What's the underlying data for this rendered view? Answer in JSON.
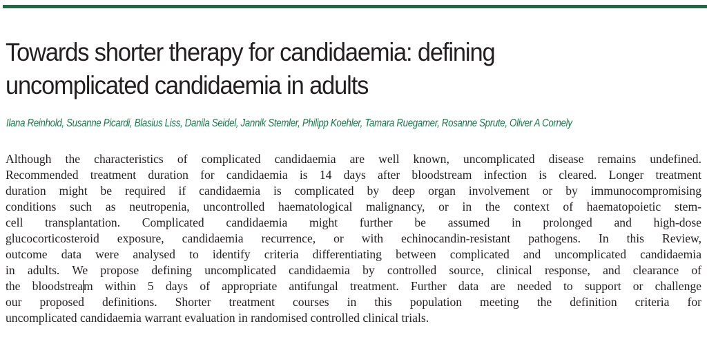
{
  "article": {
    "title_lines": [
      "Towards shorter therapy for candidaemia: defining",
      "uncomplicated candidaemia in adults"
    ],
    "authors": "Ilana Reinhold, Susanne Picardi, Blasius Liss, Danila Seidel, Jannik Stemler, Philipp Koehler, Tamara Ruegamer, Rosanne Sprute, Oliver A Cornely",
    "accent_color": "#1b6b47",
    "abstract_lines": [
      "Although the characteristics of complicated candidaemia are well known, uncomplicated disease remains undefined.",
      "Recommended treatment duration for candidaemia is 14 days after bloodstream infection is cleared. Longer treatment",
      "duration might be required if candidaemia is complicated by deep organ involvement or by immunocompromising",
      "conditions such as neutropenia, uncontrolled haematological malignancy, or in the context of haematopoietic stem-",
      "cell transplantation. Complicated candidaemia might further be assumed in prolonged and high-dose",
      "glucocorticosteroid exposure, candidaemia recurrence, or with echinocandin-resistant pathogens. In this Review,",
      "outcome data were analysed to identify criteria differentiating between complicated and uncomplicated candidaemia",
      "in adults. We propose defining uncomplicated candidaemia by controlled source, clinical response, and clearance of",
      "the bloodstrea",
      "m within 5 days of appropriate antifungal treatment. Further data are needed to support or challenge",
      "our proposed definitions. Shorter treatment courses in this population meeting the definition criteria for",
      "uncomplicated candidaemia warrant evaluation in randomised controlled clinical trials."
    ]
  }
}
